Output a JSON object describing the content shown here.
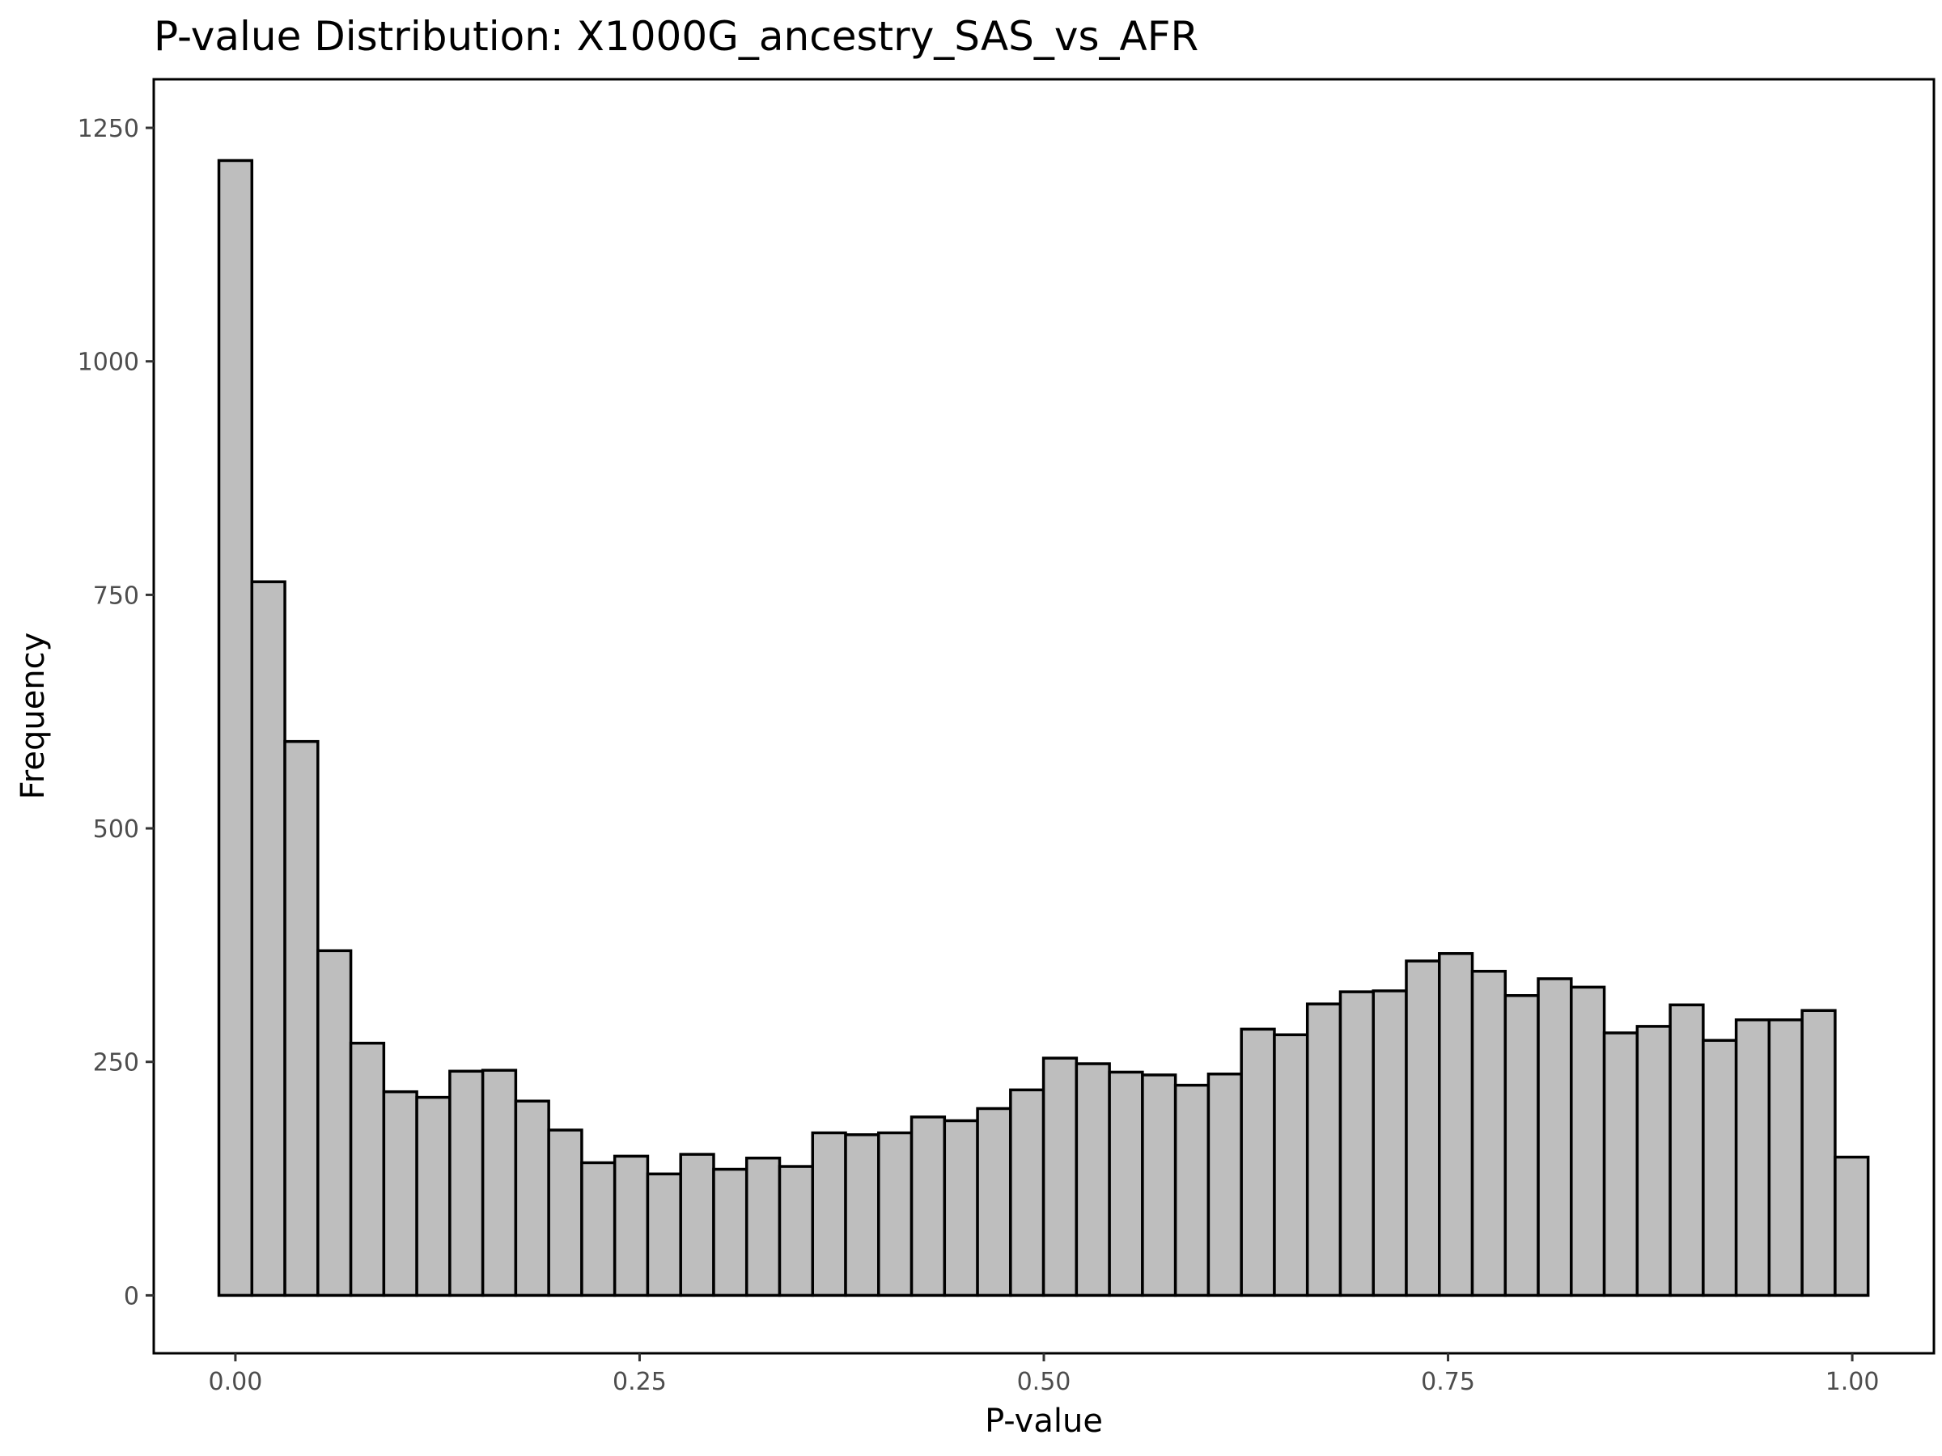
{
  "chart_data": {
    "type": "bar",
    "title": "P-value Distribution: X1000G_ancestry_SAS_vs_AFR",
    "xlabel": "P-value",
    "ylabel": "Frequency",
    "xlim": [
      -0.0505,
      1.0505
    ],
    "ylim": [
      -62,
      1302
    ],
    "x_ticks": [
      0,
      0.25,
      0.5,
      0.75,
      1
    ],
    "x_tick_labels": [
      "0.00",
      "0.25",
      "0.50",
      "0.75",
      "1.00"
    ],
    "y_ticks": [
      0,
      250,
      500,
      750,
      1000,
      1250
    ],
    "y_tick_labels": [
      "0",
      "250",
      "500",
      "750",
      "1000",
      "1250"
    ],
    "grid": false,
    "bin_width": 0.0204,
    "bin_start": -0.0102,
    "values": [
      1215,
      764,
      593,
      369,
      270,
      218,
      212,
      240,
      241,
      208,
      177,
      142,
      149,
      130,
      151,
      135,
      147,
      138,
      174,
      172,
      174,
      191,
      187,
      200,
      220,
      254,
      248,
      239,
      236,
      225,
      237,
      285,
      279,
      312,
      325,
      326,
      358,
      366,
      347,
      321,
      339,
      330,
      281,
      288,
      311,
      273,
      295,
      295,
      305,
      148
    ],
    "bar_fill": "#bebebe",
    "bar_stroke": "#000000"
  }
}
